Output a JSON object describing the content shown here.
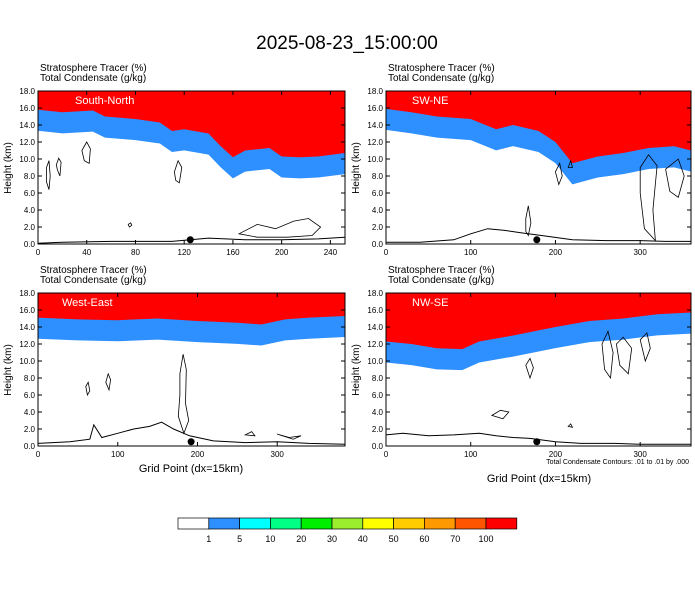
{
  "figure": {
    "title": "2025-08-23_15:00:00",
    "footer_note": "Total Condensate Contours: .01 to .01 by .000"
  },
  "colorbar": {
    "levels": [
      "1",
      "5",
      "10",
      "20",
      "30",
      "40",
      "50",
      "60",
      "70",
      "100"
    ],
    "colors": [
      "#ffffff",
      "#2e8fff",
      "#00ffff",
      "#00ff84",
      "#00ee00",
      "#9aee2e",
      "#ffff00",
      "#ffcc00",
      "#ff9900",
      "#ff5500",
      "#ff0000"
    ]
  },
  "chart_data": [
    {
      "type": "heatmap",
      "panel_label": "South-North",
      "title_line1": "Stratosphere Tracer   (%)",
      "title_line2": "Total Condensate   (g/kg)",
      "ylabel": "Height (km)",
      "xlabel": "",
      "xlim": [
        0,
        252
      ],
      "ylim": [
        0,
        18
      ],
      "xticks": [
        0,
        40,
        80,
        120,
        160,
        200,
        240
      ],
      "yticks": [
        "0.0",
        "2.0",
        "4.0",
        "6.0",
        "8.0",
        "10.0",
        "12.0",
        "14.0",
        "16.0",
        "18.0"
      ],
      "tropopause_km": [
        [
          0,
          15.3
        ],
        [
          20,
          15.0
        ],
        [
          45,
          15.2
        ],
        [
          55,
          14.5
        ],
        [
          80,
          14.2
        ],
        [
          100,
          13.8
        ],
        [
          110,
          12.8
        ],
        [
          120,
          13.0
        ],
        [
          140,
          12.5
        ],
        [
          150,
          11.0
        ],
        [
          160,
          9.7
        ],
        [
          170,
          10.5
        ],
        [
          190,
          10.8
        ],
        [
          200,
          9.8
        ],
        [
          215,
          9.7
        ],
        [
          230,
          9.8
        ],
        [
          252,
          10.2
        ]
      ],
      "terrain_km": [
        [
          0,
          0.1
        ],
        [
          20,
          0.2
        ],
        [
          60,
          0.3
        ],
        [
          110,
          0.3
        ],
        [
          140,
          0.7
        ],
        [
          170,
          0.5
        ],
        [
          200,
          0.5
        ],
        [
          230,
          0.6
        ],
        [
          252,
          0.8
        ]
      ],
      "marker_x": 125,
      "condensate_contours": [
        [
          [
            15,
            9.3
          ],
          [
            17,
            10.1
          ],
          [
            19,
            9.6
          ],
          [
            18,
            8.0
          ],
          [
            16,
            8.7
          ]
        ],
        [
          [
            7,
            9.0
          ],
          [
            9,
            9.8
          ],
          [
            10,
            8.0
          ],
          [
            9,
            6.4
          ],
          [
            7,
            7.3
          ]
        ],
        [
          [
            36,
            11.0
          ],
          [
            40,
            12.0
          ],
          [
            43,
            11.2
          ],
          [
            42,
            9.5
          ],
          [
            38,
            9.8
          ]
        ],
        [
          [
            112,
            8.5
          ],
          [
            115,
            9.8
          ],
          [
            118,
            9.0
          ],
          [
            116,
            7.2
          ],
          [
            113,
            7.5
          ]
        ],
        [
          [
            165,
            1.2
          ],
          [
            180,
            2.3
          ],
          [
            195,
            1.8
          ],
          [
            210,
            2.7
          ],
          [
            222,
            3.0
          ],
          [
            232,
            2.0
          ],
          [
            225,
            1.0
          ],
          [
            205,
            0.8
          ],
          [
            180,
            0.8
          ]
        ],
        [
          [
            74,
            2.3
          ],
          [
            76,
            2.5
          ],
          [
            77,
            2.2
          ],
          [
            75,
            2.0
          ]
        ]
      ]
    },
    {
      "type": "heatmap",
      "panel_label": "SW-NE",
      "title_line1": "Stratosphere Tracer   (%)",
      "title_line2": "Total Condensate   (g/kg)",
      "ylabel": "Height (km)",
      "xlabel": "",
      "xlim": [
        0,
        360
      ],
      "ylim": [
        0,
        18
      ],
      "xticks": [
        0,
        100,
        200,
        300
      ],
      "yticks": [
        "0.0",
        "2.0",
        "4.0",
        "6.0",
        "8.0",
        "10.0",
        "12.0",
        "14.0",
        "16.0",
        "18.0"
      ],
      "tropopause_km": [
        [
          0,
          15.4
        ],
        [
          30,
          15.0
        ],
        [
          60,
          14.5
        ],
        [
          100,
          14.2
        ],
        [
          130,
          13.0
        ],
        [
          150,
          13.5
        ],
        [
          180,
          12.8
        ],
        [
          200,
          11.5
        ],
        [
          220,
          9.0
        ],
        [
          250,
          9.8
        ],
        [
          280,
          10.2
        ],
        [
          310,
          10.8
        ],
        [
          340,
          11.0
        ],
        [
          360,
          10.5
        ]
      ],
      "terrain_km": [
        [
          0,
          0.2
        ],
        [
          40,
          0.2
        ],
        [
          80,
          0.5
        ],
        [
          100,
          1.2
        ],
        [
          120,
          1.8
        ],
        [
          140,
          1.6
        ],
        [
          160,
          1.3
        ],
        [
          190,
          0.9
        ],
        [
          220,
          0.5
        ],
        [
          260,
          0.4
        ],
        [
          300,
          0.4
        ],
        [
          330,
          0.3
        ],
        [
          360,
          0.3
        ]
      ],
      "marker_x": 178,
      "condensate_contours": [
        [
          [
            300,
            9.0
          ],
          [
            310,
            10.5
          ],
          [
            320,
            9.2
          ],
          [
            315,
            4.0
          ],
          [
            318,
            0.4
          ],
          [
            305,
            1.8
          ],
          [
            300,
            6.0
          ]
        ],
        [
          [
            330,
            8.8
          ],
          [
            345,
            10.0
          ],
          [
            352,
            8.0
          ],
          [
            345,
            5.5
          ],
          [
            335,
            6.2
          ]
        ],
        [
          [
            165,
            3.0
          ],
          [
            168,
            4.5
          ],
          [
            171,
            2.5
          ],
          [
            168,
            1.0
          ],
          [
            165,
            1.5
          ]
        ],
        [
          [
            200,
            8.5
          ],
          [
            205,
            9.5
          ],
          [
            208,
            8.0
          ],
          [
            204,
            7.0
          ]
        ],
        [
          [
            215,
            9.0
          ],
          [
            218,
            9.8
          ],
          [
            220,
            9.0
          ]
        ]
      ]
    },
    {
      "type": "heatmap",
      "panel_label": "West-East",
      "title_line1": "Stratosphere Tracer   (%)",
      "title_line2": "Total Condensate   (g/kg)",
      "ylabel": "Height (km)",
      "xlabel": "Grid Point (dx=15km)",
      "xlim": [
        0,
        385
      ],
      "ylim": [
        0,
        18
      ],
      "xticks": [
        0,
        100,
        200,
        300
      ],
      "yticks": [
        "0.0",
        "2.0",
        "4.0",
        "6.0",
        "8.0",
        "10.0",
        "12.0",
        "14.0",
        "16.0",
        "18.0"
      ],
      "tropopause_km": [
        [
          0,
          14.6
        ],
        [
          50,
          14.4
        ],
        [
          100,
          14.3
        ],
        [
          150,
          14.5
        ],
        [
          200,
          14.2
        ],
        [
          250,
          14.0
        ],
        [
          280,
          13.8
        ],
        [
          310,
          14.4
        ],
        [
          340,
          14.6
        ],
        [
          385,
          14.8
        ]
      ],
      "terrain_km": [
        [
          0,
          0.3
        ],
        [
          40,
          0.5
        ],
        [
          65,
          0.8
        ],
        [
          70,
          2.5
        ],
        [
          80,
          1.0
        ],
        [
          100,
          1.5
        ],
        [
          120,
          2.0
        ],
        [
          140,
          2.3
        ],
        [
          155,
          2.8
        ],
        [
          170,
          2.0
        ],
        [
          190,
          1.2
        ],
        [
          220,
          0.6
        ],
        [
          260,
          0.4
        ],
        [
          300,
          0.5
        ],
        [
          340,
          0.3
        ],
        [
          385,
          0.2
        ]
      ],
      "marker_x": 192,
      "condensate_contours": [
        [
          [
            178,
            8.5
          ],
          [
            182,
            10.8
          ],
          [
            186,
            9.0
          ],
          [
            185,
            5.0
          ],
          [
            189,
            3.0
          ],
          [
            183,
            1.5
          ],
          [
            176,
            3.5
          ],
          [
            178,
            6.0
          ]
        ],
        [
          [
            60,
            7.0
          ],
          [
            63,
            7.5
          ],
          [
            65,
            6.5
          ],
          [
            62,
            6.0
          ]
        ],
        [
          [
            85,
            7.5
          ],
          [
            88,
            8.5
          ],
          [
            91,
            7.8
          ],
          [
            89,
            6.6
          ]
        ],
        [
          [
            300,
            1.4
          ],
          [
            315,
            1.0
          ],
          [
            330,
            1.2
          ],
          [
            320,
            0.8
          ]
        ],
        [
          [
            260,
            1.3
          ],
          [
            268,
            1.7
          ],
          [
            272,
            1.2
          ]
        ]
      ]
    },
    {
      "type": "heatmap",
      "panel_label": "NW-SE",
      "title_line1": "Stratosphere Tracer   (%)",
      "title_line2": "Total Condensate   (g/kg)",
      "ylabel": "Height (km)",
      "xlabel": "Grid Point (dx=15km)",
      "xlim": [
        0,
        360
      ],
      "ylim": [
        0,
        18
      ],
      "xticks": [
        0,
        100,
        200,
        300
      ],
      "yticks": [
        "0.0",
        "2.0",
        "4.0",
        "6.0",
        "8.0",
        "10.0",
        "12.0",
        "14.0",
        "16.0",
        "18.0"
      ],
      "tropopause_km": [
        [
          0,
          11.8
        ],
        [
          30,
          11.5
        ],
        [
          60,
          11.0
        ],
        [
          90,
          10.9
        ],
        [
          110,
          11.8
        ],
        [
          150,
          12.5
        ],
        [
          200,
          13.5
        ],
        [
          240,
          14.2
        ],
        [
          280,
          14.5
        ],
        [
          320,
          15.0
        ],
        [
          360,
          15.2
        ]
      ],
      "terrain_km": [
        [
          0,
          1.3
        ],
        [
          20,
          1.5
        ],
        [
          50,
          1.2
        ],
        [
          80,
          1.3
        ],
        [
          110,
          1.5
        ],
        [
          130,
          1.2
        ],
        [
          150,
          1.0
        ],
        [
          170,
          0.9
        ],
        [
          200,
          0.5
        ],
        [
          230,
          0.3
        ],
        [
          270,
          0.3
        ],
        [
          300,
          0.2
        ],
        [
          360,
          0.2
        ]
      ],
      "marker_x": 178,
      "condensate_contours": [
        [
          [
            255,
            12.0
          ],
          [
            262,
            13.5
          ],
          [
            268,
            11.0
          ],
          [
            265,
            8.0
          ],
          [
            258,
            9.0
          ]
        ],
        [
          [
            272,
            12.0
          ],
          [
            280,
            12.8
          ],
          [
            290,
            11.5
          ],
          [
            286,
            8.5
          ],
          [
            276,
            9.5
          ]
        ],
        [
          [
            300,
            12.5
          ],
          [
            308,
            13.3
          ],
          [
            312,
            11.5
          ],
          [
            306,
            10.0
          ]
        ],
        [
          [
            165,
            9.5
          ],
          [
            170,
            10.3
          ],
          [
            174,
            9.2
          ],
          [
            170,
            8.0
          ]
        ],
        [
          [
            125,
            3.6
          ],
          [
            135,
            4.2
          ],
          [
            145,
            4.0
          ],
          [
            138,
            3.2
          ]
        ],
        [
          [
            215,
            2.3
          ],
          [
            218,
            2.6
          ],
          [
            220,
            2.2
          ]
        ]
      ]
    }
  ]
}
